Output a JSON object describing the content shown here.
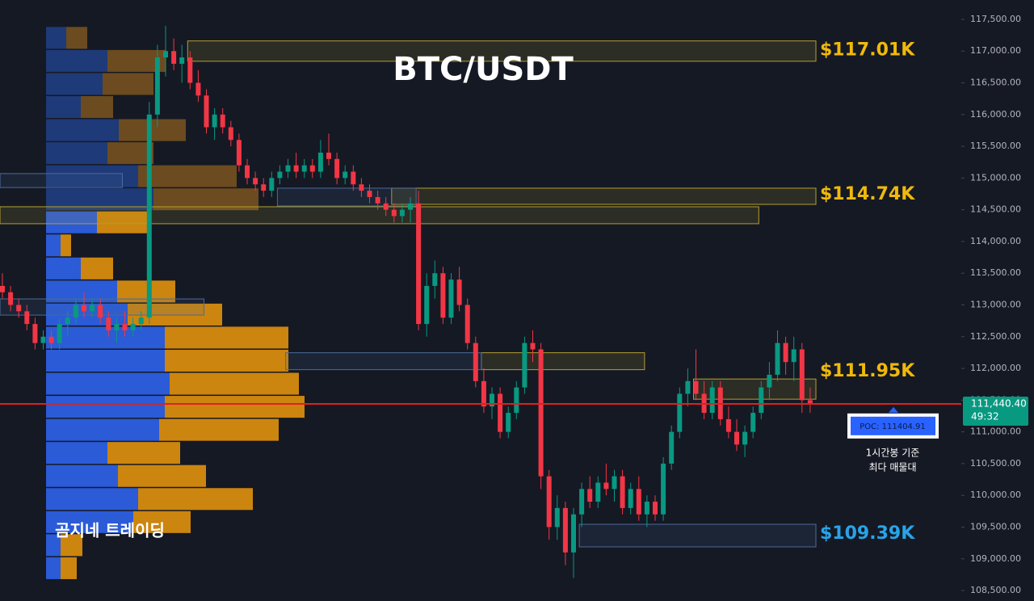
{
  "chart_data": {
    "type": "candlestick",
    "title": "BTC/USDT",
    "watermark": "곰지네 트레이딩",
    "ylim": [
      108335,
      117805
    ],
    "yticks": [
      {
        "value": 108500,
        "label": "108,500.00"
      },
      {
        "value": 109000,
        "label": "109,000.00"
      },
      {
        "value": 109500,
        "label": "109,500.00"
      },
      {
        "value": 110000,
        "label": "110,000.00"
      },
      {
        "value": 110500,
        "label": "110,500.00"
      },
      {
        "value": 111000,
        "label": "111,000.00"
      },
      {
        "value": 111500,
        "label": "111,500.00"
      },
      {
        "value": 112000,
        "label": "112,000.00"
      },
      {
        "value": 112500,
        "label": "112,500.00"
      },
      {
        "value": 113000,
        "label": "113,000.00"
      },
      {
        "value": 113500,
        "label": "113,500.00"
      },
      {
        "value": 114000,
        "label": "114,000.00"
      },
      {
        "value": 114500,
        "label": "114,500.00"
      },
      {
        "value": 115000,
        "label": "115,000.00"
      },
      {
        "value": 115500,
        "label": "115,500.00"
      },
      {
        "value": 116000,
        "label": "116,000.00"
      },
      {
        "value": 116500,
        "label": "116,500.00"
      },
      {
        "value": 117000,
        "label": "117,000.00"
      },
      {
        "value": 117500,
        "label": "117,500.00"
      }
    ],
    "grid": false,
    "up_color": "#089981",
    "down_color": "#f23645",
    "candles": [
      [
        113300,
        113500,
        113100,
        113200
      ],
      [
        113200,
        113300,
        112900,
        113000
      ],
      [
        113000,
        113100,
        112800,
        112900
      ],
      [
        112900,
        113000,
        112600,
        112700
      ],
      [
        112700,
        112800,
        112300,
        112400
      ],
      [
        112400,
        112600,
        112300,
        112500
      ],
      [
        112500,
        112600,
        112300,
        112400
      ],
      [
        112400,
        112800,
        112300,
        112700
      ],
      [
        112700,
        112900,
        112500,
        112800
      ],
      [
        112800,
        113100,
        112700,
        113000
      ],
      [
        113000,
        113200,
        112800,
        112900
      ],
      [
        112900,
        113100,
        112800,
        113000
      ],
      [
        113000,
        113100,
        112700,
        112800
      ],
      [
        112800,
        112900,
        112500,
        112600
      ],
      [
        112600,
        112800,
        112400,
        112700
      ],
      [
        112700,
        112900,
        112500,
        112600
      ],
      [
        112600,
        112800,
        112500,
        112700
      ],
      [
        112700,
        112900,
        112600,
        112800
      ],
      [
        112800,
        116200,
        112700,
        116000
      ],
      [
        116000,
        117100,
        115800,
        116900
      ],
      [
        116900,
        117400,
        116600,
        117000
      ],
      [
        117000,
        117200,
        116700,
        116800
      ],
      [
        116800,
        117100,
        116500,
        116900
      ],
      [
        116900,
        117000,
        116400,
        116500
      ],
      [
        116500,
        116700,
        116200,
        116300
      ],
      [
        116300,
        116400,
        115700,
        115800
      ],
      [
        115800,
        116100,
        115600,
        116000
      ],
      [
        116000,
        116100,
        115700,
        115800
      ],
      [
        115800,
        115900,
        115500,
        115600
      ],
      [
        115600,
        115700,
        115100,
        115200
      ],
      [
        115200,
        115300,
        114900,
        115000
      ],
      [
        115000,
        115100,
        114800,
        114900
      ],
      [
        114900,
        115000,
        114700,
        114800
      ],
      [
        114800,
        115100,
        114700,
        115000
      ],
      [
        115000,
        115200,
        114900,
        115100
      ],
      [
        115100,
        115300,
        115000,
        115200
      ],
      [
        115200,
        115400,
        115000,
        115100
      ],
      [
        115100,
        115300,
        115000,
        115200
      ],
      [
        115200,
        115300,
        115000,
        115100
      ],
      [
        115100,
        115600,
        115000,
        115400
      ],
      [
        115400,
        115700,
        115200,
        115300
      ],
      [
        115300,
        115400,
        114900,
        115000
      ],
      [
        115000,
        115200,
        114900,
        115100
      ],
      [
        115100,
        115200,
        114800,
        114900
      ],
      [
        114900,
        115000,
        114700,
        114800
      ],
      [
        114800,
        114900,
        114600,
        114700
      ],
      [
        114700,
        114800,
        114500,
        114600
      ],
      [
        114600,
        114700,
        114400,
        114500
      ],
      [
        114500,
        114600,
        114300,
        114400
      ],
      [
        114400,
        114600,
        114300,
        114500
      ],
      [
        114500,
        114700,
        114300,
        114600
      ],
      [
        114600,
        114800,
        112600,
        112700
      ],
      [
        112700,
        113500,
        112500,
        113300
      ],
      [
        113300,
        113700,
        113100,
        113500
      ],
      [
        113500,
        113600,
        112700,
        112800
      ],
      [
        112800,
        113500,
        112700,
        113400
      ],
      [
        113400,
        113600,
        112900,
        113000
      ],
      [
        113000,
        113100,
        112300,
        112400
      ],
      [
        112400,
        112500,
        111700,
        111800
      ],
      [
        111800,
        112000,
        111300,
        111400
      ],
      [
        111400,
        111700,
        111200,
        111600
      ],
      [
        111600,
        111700,
        110900,
        111000
      ],
      [
        111000,
        111400,
        110900,
        111300
      ],
      [
        111300,
        111800,
        111200,
        111700
      ],
      [
        111700,
        112500,
        111600,
        112400
      ],
      [
        112400,
        112600,
        112100,
        112300
      ],
      [
        112300,
        112400,
        110100,
        110300
      ],
      [
        110300,
        110400,
        109300,
        109500
      ],
      [
        109500,
        110000,
        109300,
        109800
      ],
      [
        109800,
        109900,
        108900,
        109100
      ],
      [
        109100,
        109800,
        108700,
        109700
      ],
      [
        109700,
        110200,
        109500,
        110100
      ],
      [
        110100,
        110300,
        109800,
        109900
      ],
      [
        109900,
        110300,
        109800,
        110200
      ],
      [
        110200,
        110500,
        110000,
        110100
      ],
      [
        110100,
        110400,
        109900,
        110300
      ],
      [
        110300,
        110400,
        109700,
        109800
      ],
      [
        109800,
        110200,
        109700,
        110100
      ],
      [
        110100,
        110300,
        109600,
        109700
      ],
      [
        109700,
        110000,
        109500,
        109900
      ],
      [
        109900,
        110000,
        109600,
        109700
      ],
      [
        109700,
        110600,
        109600,
        110500
      ],
      [
        110500,
        111100,
        110400,
        111000
      ],
      [
        111000,
        111700,
        110900,
        111600
      ],
      [
        111600,
        112000,
        111400,
        111800
      ],
      [
        111800,
        112300,
        111500,
        111600
      ],
      [
        111600,
        111800,
        111200,
        111300
      ],
      [
        111300,
        111800,
        111200,
        111700
      ],
      [
        111700,
        111800,
        111100,
        111200
      ],
      [
        111200,
        111400,
        110900,
        111000
      ],
      [
        111000,
        111200,
        110700,
        110800
      ],
      [
        110800,
        111100,
        110600,
        111000
      ],
      [
        111000,
        111400,
        110900,
        111300
      ],
      [
        111300,
        111800,
        111200,
        111700
      ],
      [
        111700,
        112100,
        111500,
        111900
      ],
      [
        111900,
        112600,
        111800,
        112400
      ],
      [
        112400,
        112500,
        111900,
        112100
      ],
      [
        112100,
        112500,
        111800,
        112300
      ],
      [
        112300,
        112400,
        111300,
        111500
      ],
      [
        111500,
        111700,
        111300,
        111440
      ]
    ],
    "profile": {
      "high": 117390,
      "low": 108670,
      "value_area_high": 114550,
      "buy_color": "#2b5bd6",
      "sell_color": "#cc850f",
      "buy_dim": "#1f3a78",
      "sell_dim": "#6b4b1f",
      "buy": [
        25,
        76,
        70,
        43,
        90,
        76,
        114,
        133,
        63,
        18,
        43,
        88,
        101,
        147,
        147,
        153,
        147,
        140,
        76,
        89,
        114,
        108,
        18,
        18
      ],
      "sell": [
        26,
        72,
        63,
        40,
        83,
        57,
        122,
        130,
        63,
        13,
        40,
        72,
        117,
        153,
        153,
        160,
        173,
        148,
        90,
        109,
        142,
        71,
        27,
        20
      ]
    },
    "zones": [
      {
        "high": 117160,
        "low": 116840,
        "from": 23,
        "to": 100,
        "color": "#b59f2d",
        "level": 117010,
        "label": "$117.01K",
        "label_color": "#f0b90b"
      },
      {
        "high": 114840,
        "low": 114585,
        "from": 48,
        "to": 100,
        "color": "#b59f2d",
        "level": 114740,
        "label": "$114.74K",
        "label_color": "#f0b90b"
      },
      {
        "high": 114547,
        "low": 114280,
        "from": 0,
        "to": 93,
        "color": "#b59f2d"
      },
      {
        "high": 111833,
        "low": 111515,
        "from": 85,
        "to": 100,
        "color": "#b59f2d",
        "level": 111950,
        "label": "$111.95K",
        "label_color": "#f0b90b"
      },
      {
        "high": 112247,
        "low": 111980,
        "from": 59,
        "to": 79,
        "color": "#b59f2d"
      },
      {
        "high": 109544,
        "low": 109188,
        "from": 71,
        "to": 100,
        "color": "#4a6a9a",
        "level": 109390,
        "label": "$109.39K",
        "label_color": "#29a3e8"
      },
      {
        "high": 114840,
        "low": 114560,
        "from": 34,
        "to": 51,
        "color": "#4a6a9a"
      },
      {
        "high": 115070,
        "low": 114850,
        "from": 0,
        "to": 15,
        "color": "#4a6a9a"
      },
      {
        "high": 113095,
        "low": 112840,
        "from": 0,
        "to": 25,
        "color": "#4a6a9a"
      },
      {
        "high": 112247,
        "low": 111980,
        "from": 35,
        "to": 59,
        "color": "#4a6a9a"
      }
    ],
    "last_price": {
      "value": 111440.4,
      "label": "111,440.40",
      "countdown": "49:32",
      "color": "#089981",
      "line_color": "#e0201e"
    },
    "poc": {
      "value": 111404.91,
      "label": "POC: 111404.91",
      "note": [
        "1시간봉 기준",
        "최다 매물대"
      ],
      "color": "#2962ff"
    }
  }
}
